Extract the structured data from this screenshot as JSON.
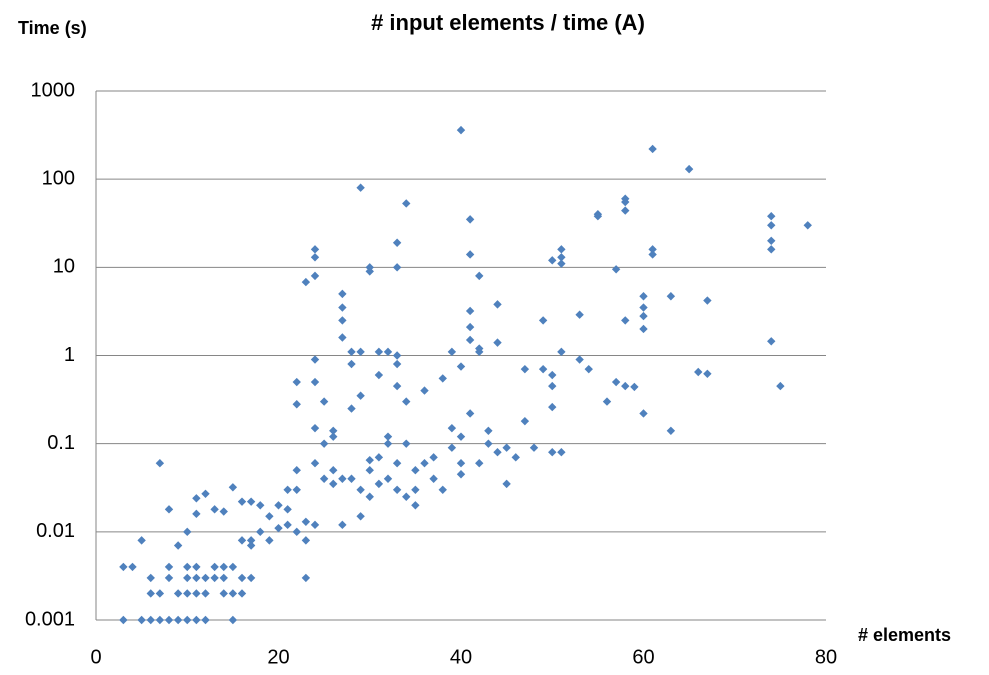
{
  "chart_data": {
    "type": "scatter",
    "title": "# input elements / time (A)",
    "y_label": "Time (s)",
    "x_label": "# elements",
    "color": "#4f81bd",
    "log_y": true,
    "grid": true,
    "xlim": [
      0,
      80
    ],
    "xticks": [
      0,
      20,
      40,
      60,
      80
    ],
    "ylim": [
      0.001,
      1000
    ],
    "yticks": [
      0.001,
      0.01,
      0.1,
      1,
      10,
      100,
      1000
    ],
    "x": [
      3,
      5,
      6,
      7,
      8,
      9,
      10,
      11,
      12,
      15,
      6,
      7,
      9,
      10,
      11,
      12,
      14,
      15,
      16,
      6,
      8,
      10,
      11,
      12,
      13,
      14,
      16,
      17,
      23,
      3,
      4,
      8,
      10,
      11,
      13,
      14,
      15,
      5,
      16,
      17,
      7,
      8,
      9,
      10,
      11,
      11,
      12,
      13,
      14,
      15,
      16,
      17,
      18,
      19,
      20,
      21,
      22,
      22,
      22,
      23,
      24,
      24,
      24,
      24,
      24,
      24,
      25,
      25,
      26,
      26,
      27,
      27,
      27,
      27,
      28,
      28,
      29,
      29,
      29,
      30,
      30,
      30,
      31,
      31,
      32,
      32,
      33,
      33,
      33,
      33,
      33,
      34,
      34,
      35,
      36,
      38,
      39,
      40,
      40,
      40,
      40,
      41,
      41,
      41,
      41,
      41,
      41,
      42,
      42,
      42,
      43,
      44,
      44,
      45,
      45,
      46,
      47,
      47,
      48,
      49,
      49,
      50,
      50,
      50,
      50,
      50,
      51,
      51,
      51,
      51,
      51,
      53,
      53,
      54,
      55,
      55,
      56,
      57,
      57,
      58,
      58,
      58,
      58,
      58,
      59,
      60,
      60,
      60,
      60,
      60,
      61,
      61,
      61,
      63,
      63,
      65,
      66,
      67,
      67,
      74,
      74,
      74,
      74,
      74,
      75,
      78,
      20,
      21,
      22,
      23,
      23,
      24,
      25,
      26,
      27,
      28,
      29,
      30,
      31,
      32,
      33,
      34,
      35,
      36,
      37,
      38,
      39,
      40,
      42,
      43,
      44,
      18,
      19,
      17,
      21,
      22,
      27,
      29,
      31,
      33,
      35,
      24,
      26,
      28,
      30,
      32,
      34,
      37,
      39
    ],
    "values": [
      0.001,
      0.001,
      0.001,
      0.001,
      0.001,
      0.001,
      0.001,
      0.001,
      0.001,
      0.001,
      0.002,
      0.002,
      0.002,
      0.002,
      0.002,
      0.002,
      0.002,
      0.002,
      0.002,
      0.003,
      0.003,
      0.003,
      0.003,
      0.003,
      0.003,
      0.003,
      0.003,
      0.003,
      0.003,
      0.004,
      0.004,
      0.004,
      0.004,
      0.004,
      0.004,
      0.004,
      0.004,
      0.008,
      0.008,
      0.008,
      0.06,
      0.018,
      0.007,
      0.01,
      0.016,
      0.024,
      0.027,
      0.018,
      0.017,
      0.032,
      0.022,
      0.022,
      0.02,
      0.015,
      0.011,
      0.03,
      0.05,
      0.5,
      0.28,
      6.8,
      16,
      13,
      8,
      0.9,
      0.5,
      0.06,
      0.1,
      0.3,
      0.05,
      0.14,
      5,
      3.5,
      2.5,
      1.6,
      1.1,
      0.8,
      80,
      1.1,
      0.35,
      10,
      9,
      0.05,
      1.1,
      0.6,
      1.1,
      0.12,
      19,
      10,
      1.0,
      0.8,
      0.45,
      53,
      0.3,
      0.05,
      0.4,
      0.55,
      1.1,
      360,
      0.75,
      0.12,
      0.045,
      35,
      14,
      3.2,
      2.1,
      1.5,
      0.22,
      8,
      1.2,
      1.1,
      0.14,
      3.8,
      1.4,
      0.035,
      0.09,
      0.07,
      0.7,
      0.18,
      0.09,
      2.5,
      0.7,
      12,
      0.6,
      0.45,
      0.26,
      0.08,
      16,
      13,
      11,
      1.1,
      0.08,
      2.9,
      0.9,
      0.7,
      40,
      38,
      0.3,
      9.5,
      0.5,
      60,
      55,
      44,
      2.5,
      0.45,
      0.44,
      4.7,
      3.5,
      2.8,
      2,
      0.22,
      220,
      16,
      14,
      4.7,
      0.14,
      130,
      0.65,
      4.2,
      0.62,
      38,
      30,
      20,
      16,
      1.45,
      0.45,
      30,
      0.02,
      0.012,
      0.01,
      0.013,
      0.008,
      0.012,
      0.04,
      0.035,
      0.04,
      0.04,
      0.03,
      0.025,
      0.035,
      0.04,
      0.03,
      0.025,
      0.03,
      0.06,
      0.04,
      0.03,
      0.09,
      0.06,
      0.06,
      0.1,
      0.08,
      0.01,
      0.008,
      0.007,
      0.018,
      0.03,
      0.012,
      0.015,
      0.07,
      0.06,
      0.02,
      0.15,
      0.12,
      0.25,
      0.065,
      0.1,
      0.1,
      0.07,
      0.15
    ]
  }
}
